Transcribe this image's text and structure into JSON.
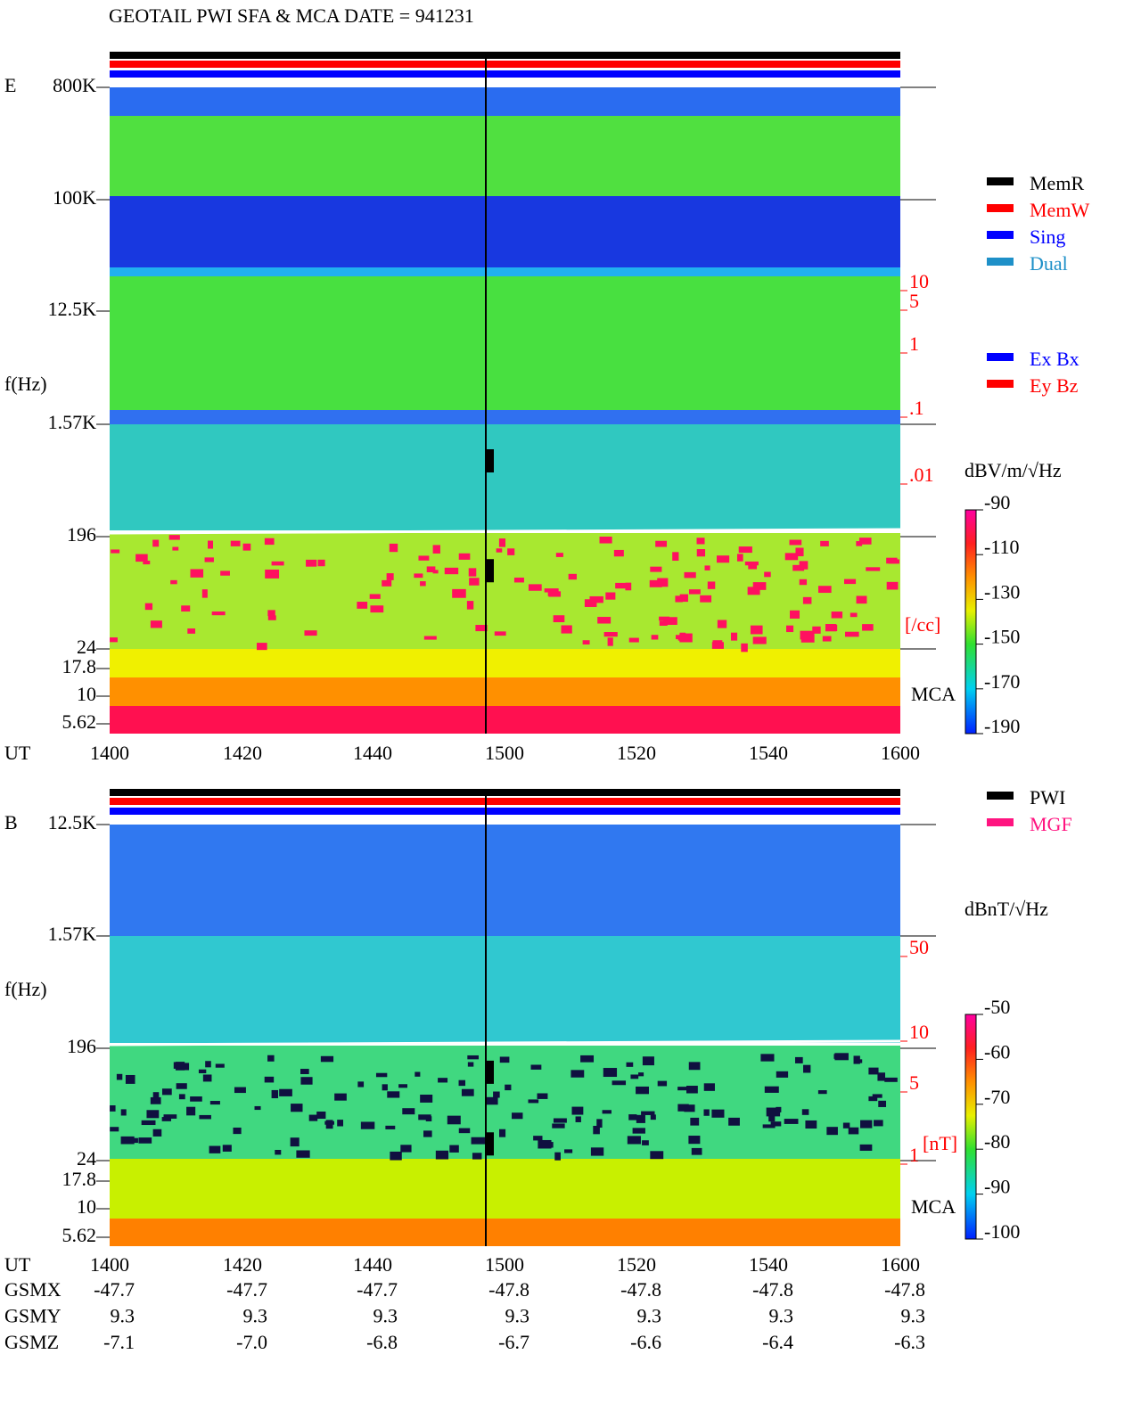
{
  "title": "GEOTAIL  PWI SFA & MCA   DATE = 941231",
  "panels": [
    {
      "id_label": "E",
      "axis_label": "f(Hz)",
      "freq_labels": [
        "800K",
        "100K",
        "12.5K",
        "1.57K",
        "196",
        "24",
        "17.8",
        "10",
        "5.62"
      ],
      "density_labels": [
        "10",
        "5",
        "1",
        ".1",
        ".01"
      ],
      "density_unit": "[/cc]",
      "mca_label": "MCA",
      "time_label": "UT",
      "time_ticks": [
        "1400",
        "1420",
        "1440",
        "1500",
        "1520",
        "1540",
        "1600"
      ],
      "legend": [
        {
          "name": "MemR",
          "color": "#000000"
        },
        {
          "name": "MemW",
          "color": "#ff0000"
        },
        {
          "name": "Sing",
          "color": "#0000ff"
        },
        {
          "name": "Dual",
          "color": "#1e90c8"
        }
      ],
      "legend2": [
        {
          "name": "Ex Bx",
          "color": "#0000ff"
        },
        {
          "name": "Ey Bz",
          "color": "#ff0000"
        }
      ],
      "colorbar": {
        "unit": "dBV/m/√Hz",
        "range": [
          -190,
          -90
        ],
        "ticks": [
          -90,
          -110,
          -130,
          -150,
          -170,
          -190
        ]
      }
    },
    {
      "id_label": "B",
      "axis_label": "f(Hz)",
      "freq_labels": [
        "12.5K",
        "1.57K",
        "196",
        "24",
        "17.8",
        "10",
        "5.62"
      ],
      "density_labels": [
        "50",
        "10",
        "5",
        "1"
      ],
      "density_unit": "[nT]",
      "mca_label": "MCA",
      "time_label": "UT",
      "time_ticks": [
        "1400",
        "1420",
        "1440",
        "1500",
        "1520",
        "1540",
        "1600"
      ],
      "legend": [
        {
          "name": "PWI",
          "color": "#000000"
        },
        {
          "name": "MGF",
          "color": "#ff1480"
        }
      ],
      "colorbar": {
        "unit": "dBnT/√Hz",
        "range": [
          -100,
          -50
        ],
        "ticks": [
          -50,
          -60,
          -70,
          -80,
          -90,
          -100
        ]
      }
    }
  ],
  "orbit": {
    "rows": [
      {
        "label": "GSMX",
        "values": [
          "-47.7",
          "-47.7",
          "-47.7",
          "-47.8",
          "-47.8",
          "-47.8",
          "-47.8"
        ]
      },
      {
        "label": "GSMY",
        "values": [
          "9.3",
          "9.3",
          "9.3",
          "9.3",
          "9.3",
          "9.3",
          "9.3"
        ]
      },
      {
        "label": "GSMZ",
        "values": [
          "-7.1",
          "-7.0",
          "-6.8",
          "-6.7",
          "-6.6",
          "-6.4",
          "-6.3"
        ]
      }
    ]
  }
}
